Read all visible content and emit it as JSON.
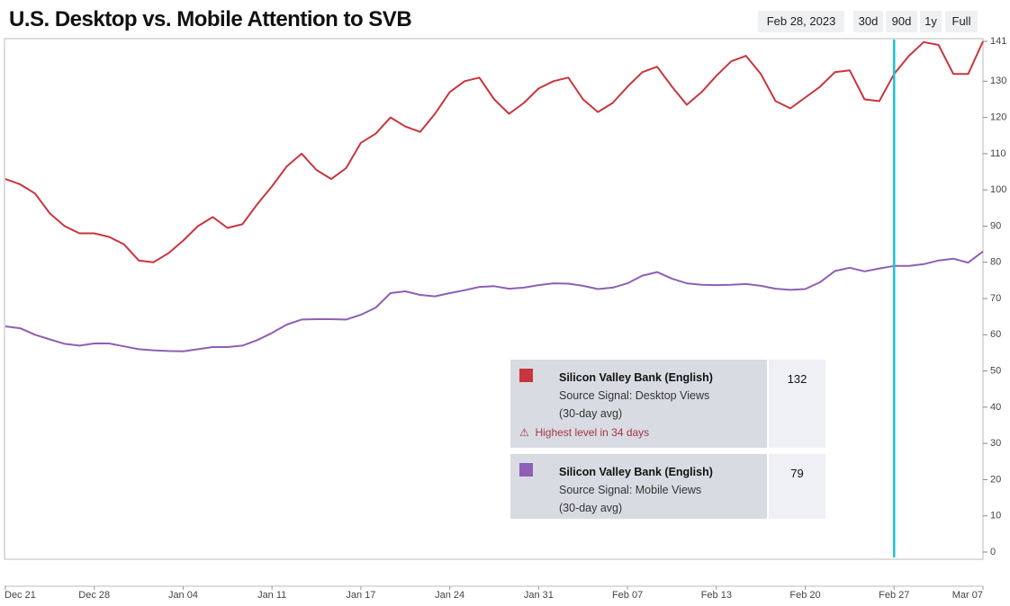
{
  "chart_data": {
    "type": "line",
    "title": "U.S. Desktop vs. Mobile Attention to SVB",
    "date_label": "Feb 28, 2023",
    "range_buttons": [
      "30d",
      "90d",
      "1y",
      "Full"
    ],
    "categories": [
      "Dec 21",
      null,
      null,
      null,
      null,
      null,
      "Dec 28",
      null,
      null,
      null,
      null,
      null,
      "Jan 04",
      null,
      null,
      null,
      null,
      null,
      "Jan 11",
      null,
      null,
      null,
      null,
      null,
      "Jan 17",
      null,
      null,
      null,
      null,
      null,
      "Jan 24",
      null,
      null,
      null,
      null,
      null,
      "Jan 31",
      null,
      null,
      null,
      null,
      null,
      "Feb 07",
      null,
      null,
      null,
      null,
      null,
      "Feb 13",
      null,
      null,
      null,
      null,
      null,
      "Feb 20",
      null,
      null,
      null,
      null,
      null,
      "Feb 27",
      null,
      null,
      null,
      null,
      null,
      "Mar 07"
    ],
    "series": [
      {
        "name": "Silicon Valley Bank (English)",
        "color": "#c9353f",
        "values": [
          103,
          101.5,
          99,
          93.5,
          90,
          88,
          88,
          87,
          85,
          80.5,
          80,
          82.5,
          86,
          90,
          92.5,
          89.5,
          90.5,
          96,
          101,
          106.5,
          110,
          105.5,
          103,
          106,
          113,
          115.5,
          120,
          117.5,
          116,
          121,
          127,
          130,
          131,
          125,
          121,
          124,
          128,
          130,
          131,
          125,
          121.5,
          124,
          128.5,
          132.5,
          134,
          128.5,
          123.5,
          127,
          131.5,
          135.5,
          137,
          132,
          124.5,
          122.5,
          125.5,
          128.5,
          132.5,
          133,
          125,
          124.5,
          132,
          137,
          140.8,
          140,
          132,
          132,
          141
        ]
      },
      {
        "name": "Silicon Valley Bank (English)",
        "color": "#8e5fb5",
        "values": [
          62.3,
          61.8,
          60,
          58.7,
          57.5,
          57,
          57.6,
          57.6,
          56.8,
          56,
          55.7,
          55.5,
          55.4,
          56,
          56.6,
          56.6,
          57,
          58.5,
          60.5,
          62.8,
          64.2,
          64.3,
          64.3,
          64.2,
          65.5,
          67.5,
          71.5,
          72,
          71,
          70.6,
          71.5,
          72.3,
          73.2,
          73.4,
          72.7,
          73,
          73.7,
          74.2,
          74.1,
          73.5,
          72.6,
          73,
          74.2,
          76.3,
          77.3,
          75.5,
          74.2,
          73.8,
          73.7,
          73.8,
          74,
          73.5,
          72.7,
          72.4,
          72.6,
          74.5,
          77.6,
          78.5,
          77.5,
          78.3,
          79,
          79,
          79.5,
          80.5,
          81,
          79.9,
          83
        ]
      }
    ],
    "ylim": [
      0,
      141.5
    ],
    "yticks": [
      0,
      10,
      20,
      30,
      40,
      50,
      60,
      70,
      80,
      90,
      100,
      110,
      120,
      130,
      141
    ],
    "cursor_index": 60,
    "tooltip": [
      {
        "name": "Silicon Valley Bank (English)",
        "signal": "Source Signal: Desktop Views",
        "avg": "(30-day avg)",
        "value": 132,
        "note": "Highest level in 34 days"
      },
      {
        "name": "Silicon Valley Bank (English)",
        "signal": "Source Signal: Mobile Views",
        "avg": "(30-day avg)",
        "value": 79
      }
    ]
  }
}
